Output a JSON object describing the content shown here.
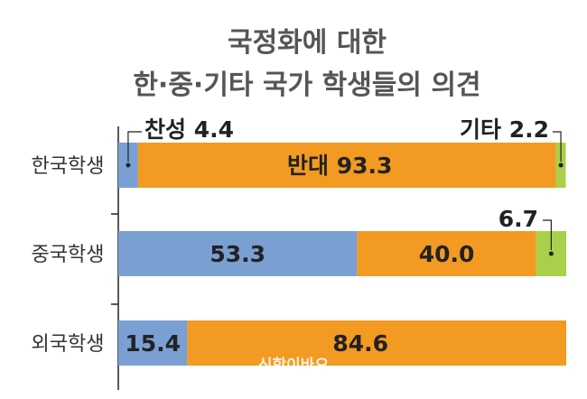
{
  "title_line1": "국정화에 대한",
  "title_line2": "한·중·기타 국가 학생들의 의견",
  "watermark": "신학이바오",
  "colors": {
    "support": "#7a9fd3",
    "oppose": "#f29a22",
    "other": "#a8d04a",
    "text": "#222222",
    "title": "#555555",
    "axis": "#222222"
  },
  "chart_data": {
    "type": "bar",
    "orientation": "horizontal",
    "stacked": true,
    "percent": true,
    "title": "국정화에 대한 한·중·기타 국가 학생들의 의견",
    "categories": [
      "한국학생",
      "중국학생",
      "외국학생"
    ],
    "series": [
      {
        "name": "찬성",
        "values": [
          4.4,
          53.3,
          15.4
        ],
        "color": "#7a9fd3"
      },
      {
        "name": "반대",
        "values": [
          93.3,
          40.0,
          84.6
        ],
        "color": "#f29a22"
      },
      {
        "name": "기타",
        "values": [
          2.2,
          6.7,
          0
        ],
        "color": "#a8d04a"
      }
    ],
    "xlim": [
      0,
      100
    ],
    "grid": false,
    "legend": "none",
    "annotations": [
      {
        "category": "한국학생",
        "series": "찬성",
        "text": "찬성 4.4"
      },
      {
        "category": "한국학생",
        "series": "반대",
        "text": "반대 93.3"
      },
      {
        "category": "한국학생",
        "series": "기타",
        "text": "기타 2.2"
      },
      {
        "category": "중국학생",
        "series": "찬성",
        "text": "53.3"
      },
      {
        "category": "중국학생",
        "series": "반대",
        "text": "40.0"
      },
      {
        "category": "중국학생",
        "series": "기타",
        "text": "6.7"
      },
      {
        "category": "외국학생",
        "series": "찬성",
        "text": "15.4"
      },
      {
        "category": "외국학생",
        "series": "반대",
        "text": "84.6"
      }
    ]
  }
}
